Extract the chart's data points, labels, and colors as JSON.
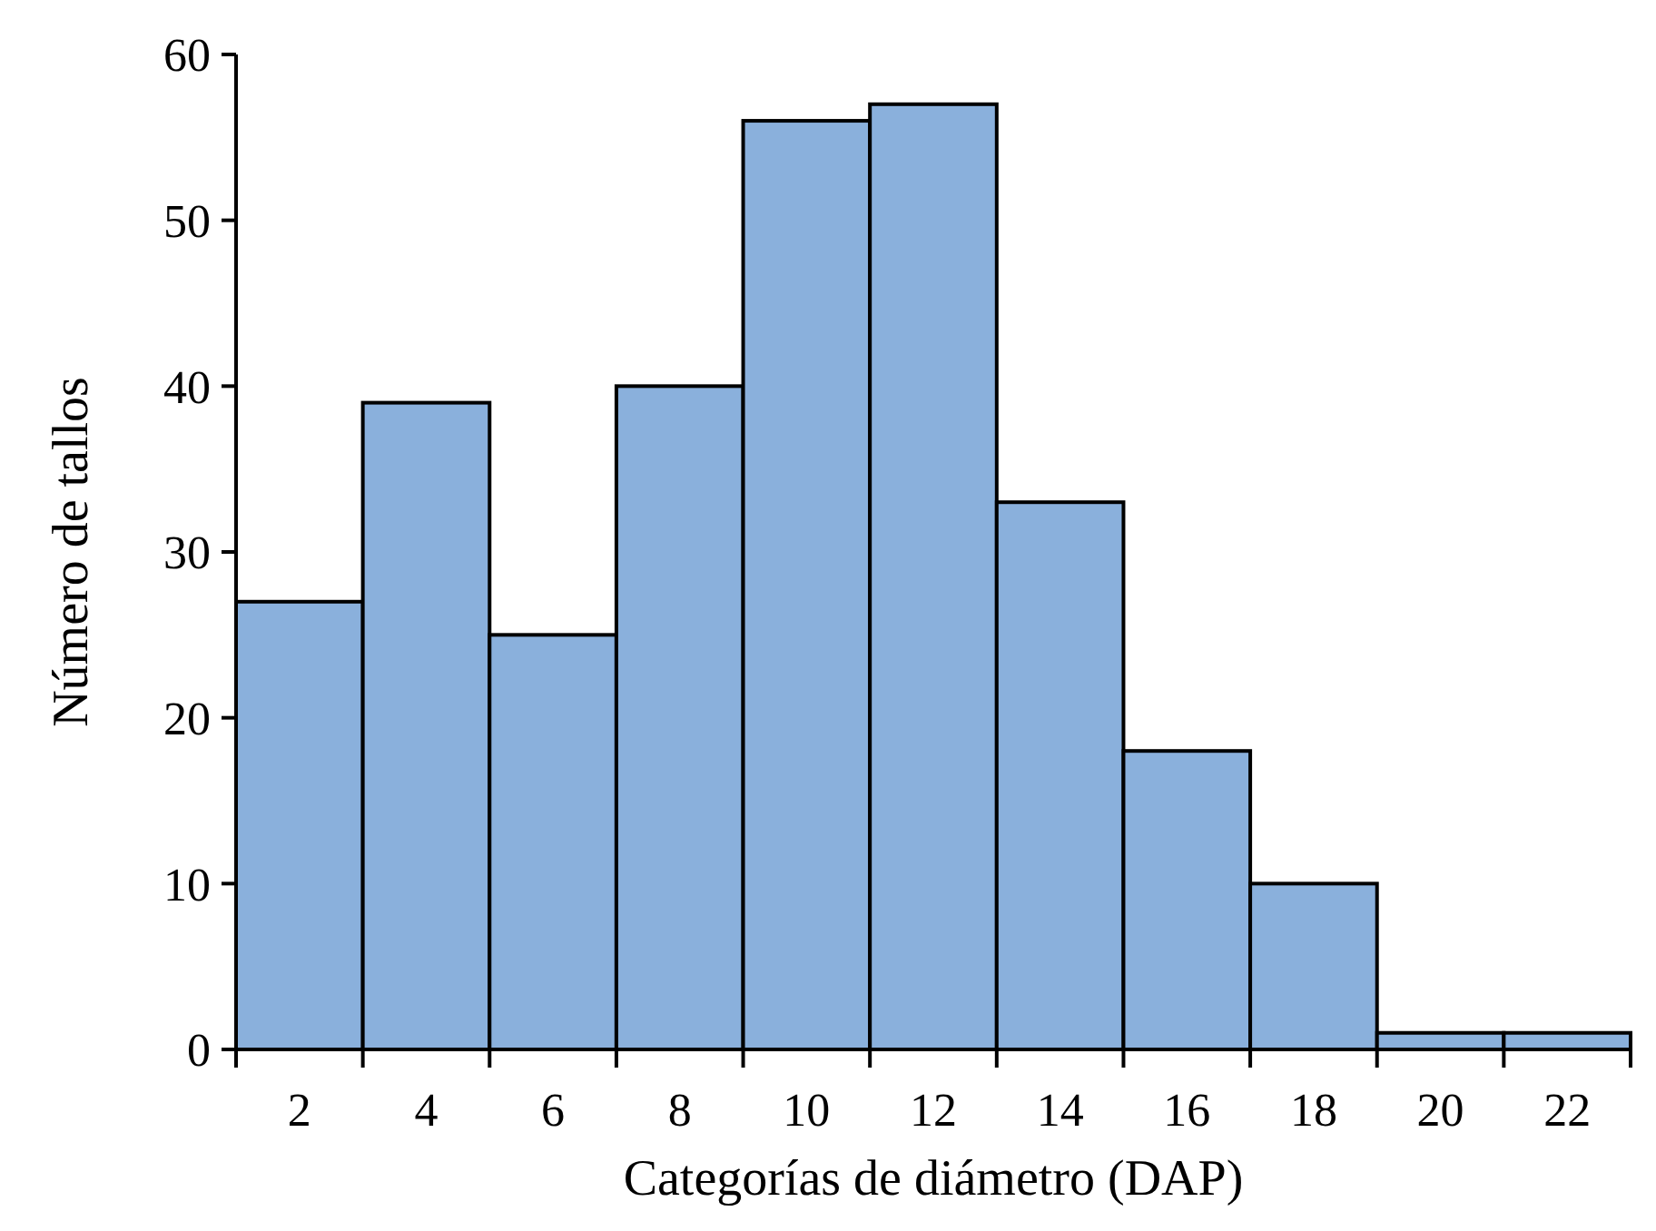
{
  "chart_data": {
    "type": "bar",
    "xlabel": "Categorías de diámetro (DAP)",
    "ylabel": "Número de tallos",
    "categories": [
      "2",
      "4",
      "6",
      "8",
      "10",
      "12",
      "14",
      "16",
      "18",
      "20",
      "22"
    ],
    "values": [
      27,
      39,
      25,
      40,
      56,
      57,
      33,
      18,
      10,
      1,
      1
    ],
    "color": "#8ab0dc",
    "ylim": [
      0,
      60
    ],
    "yticks": [
      0,
      10,
      20,
      30,
      40,
      50,
      60
    ],
    "grid": false
  }
}
